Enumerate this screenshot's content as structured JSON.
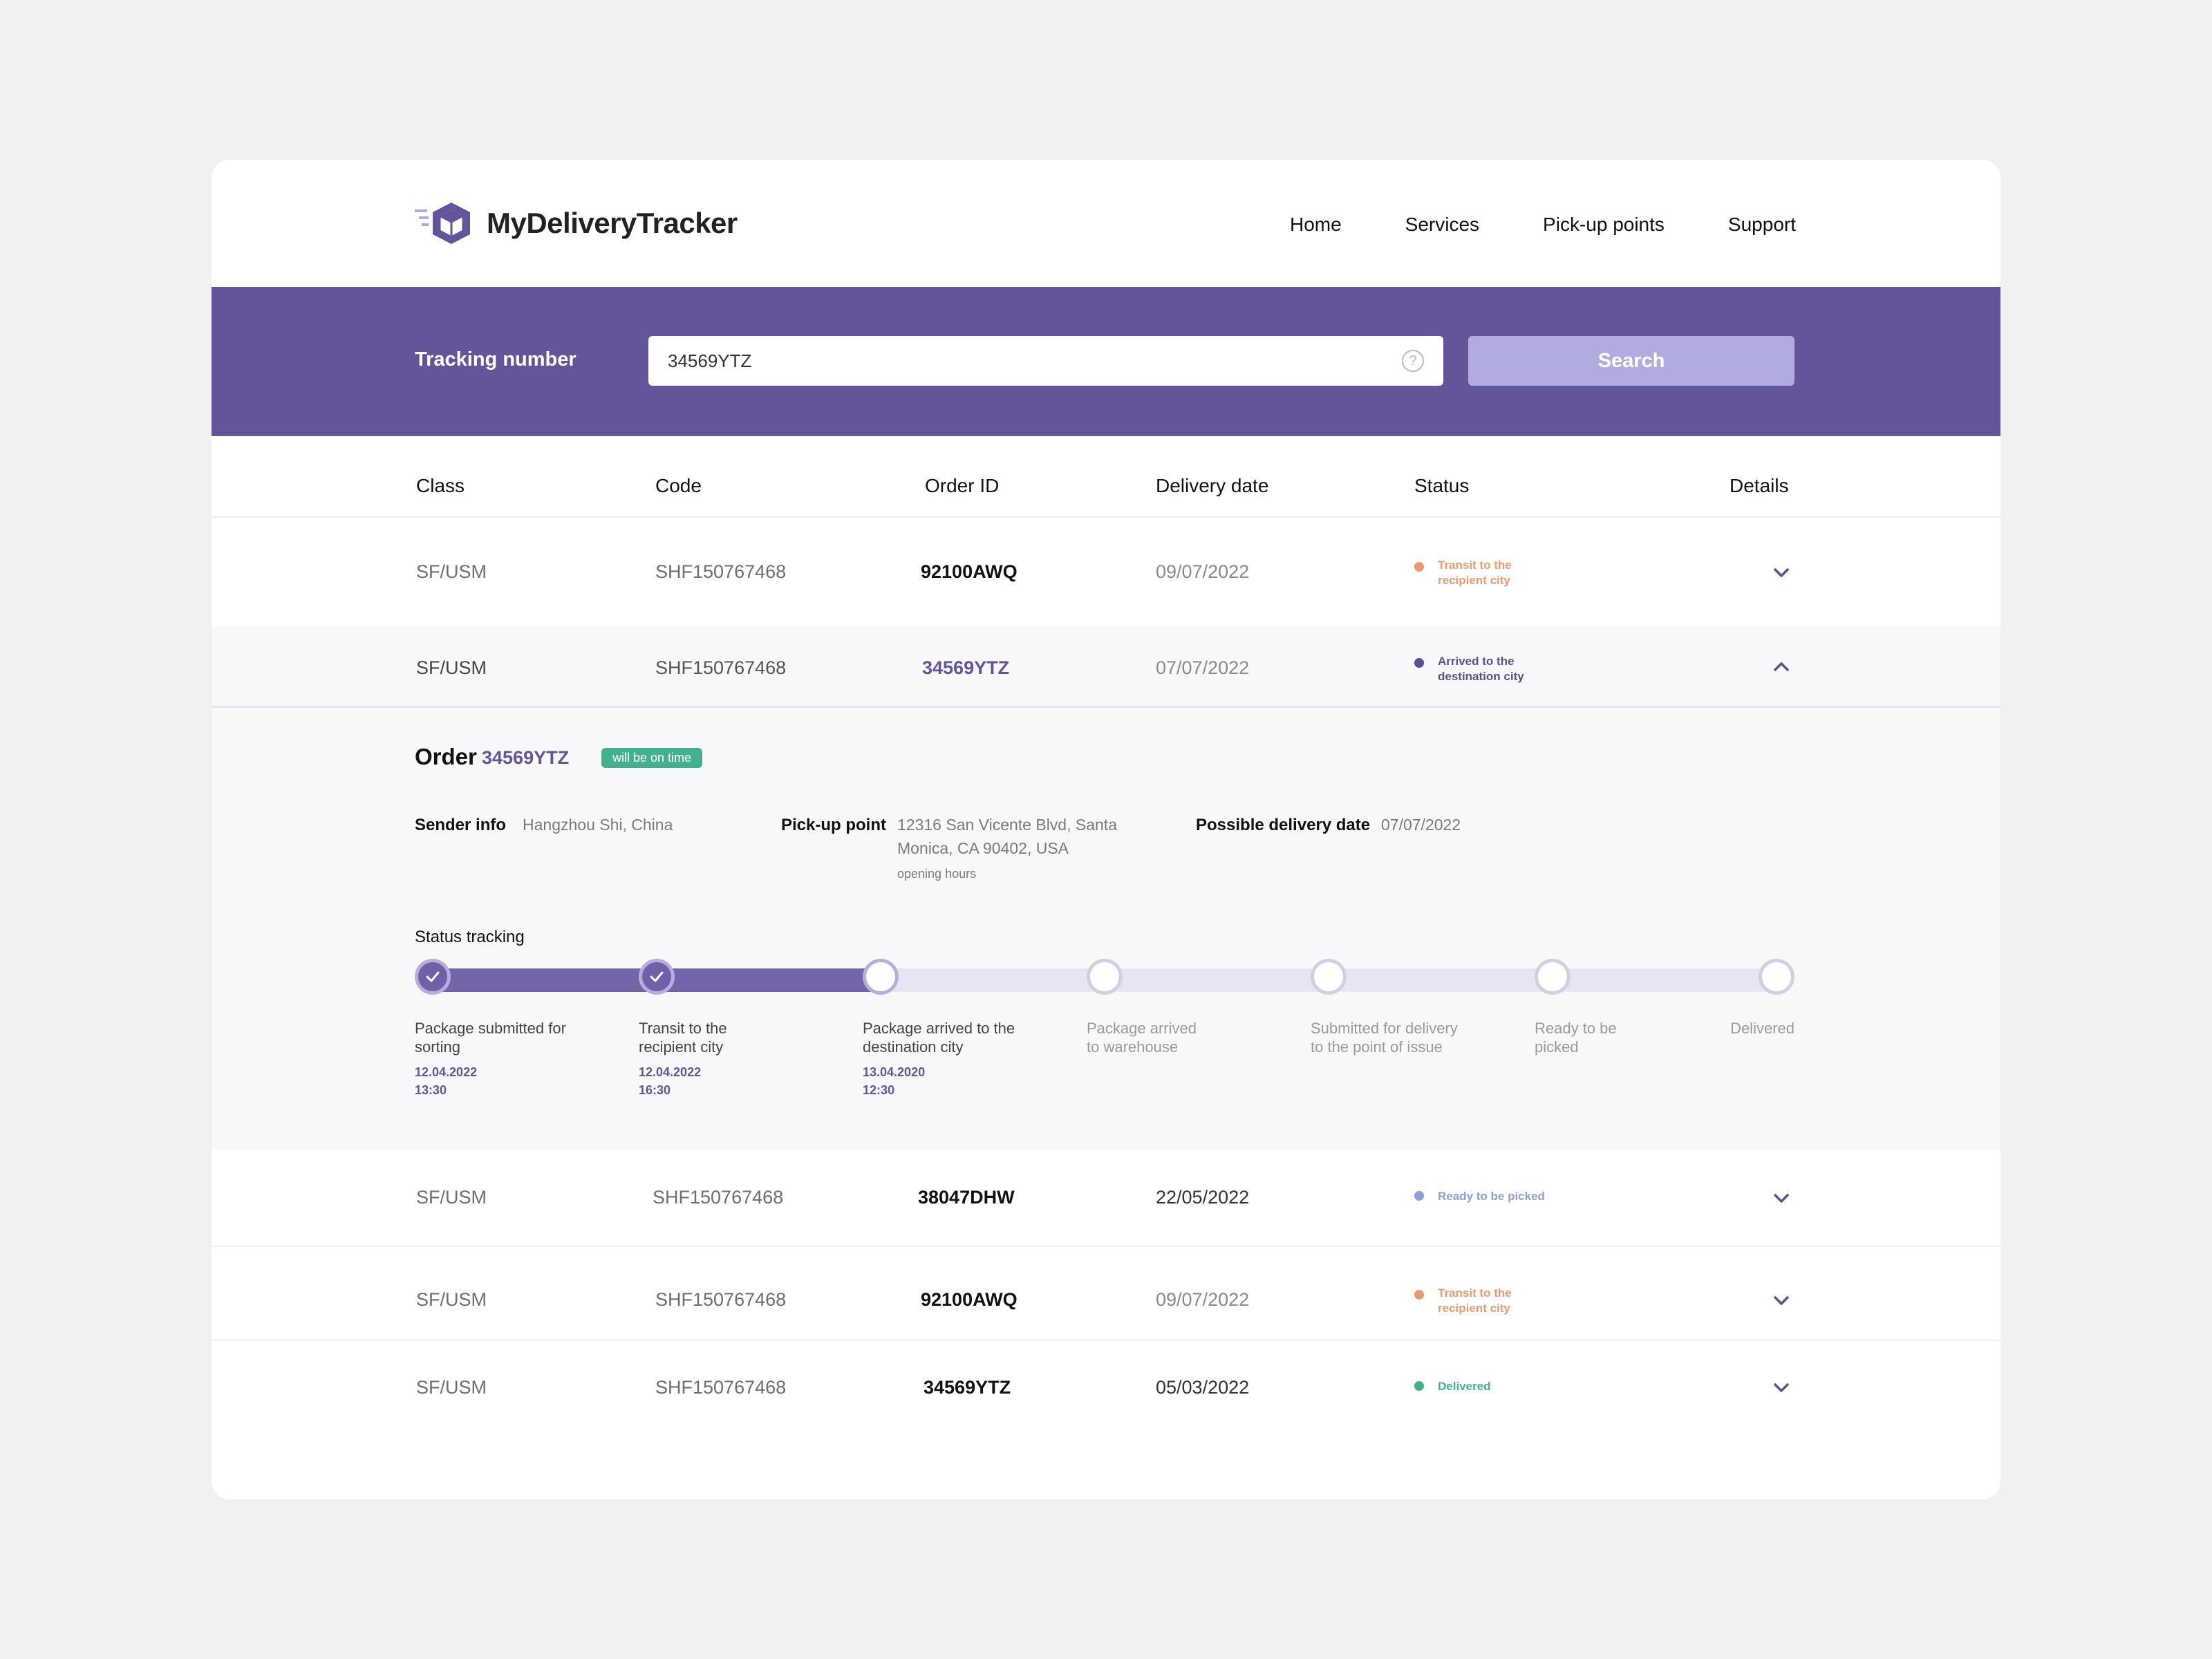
{
  "app": {
    "name": "MyDeliveryTracker",
    "nav": [
      "Home",
      "Services",
      "Pick-up points",
      "Support"
    ]
  },
  "search": {
    "label": "Tracking number",
    "value": "34569YTZ",
    "button": "Search"
  },
  "table": {
    "headers": [
      "Class",
      "Code",
      "Order ID",
      "Delivery date",
      "Status",
      "Details"
    ],
    "rows": [
      {
        "class": "SF/USM",
        "code": "SHF150767468",
        "order_id": "92100AWQ",
        "date": "09/07/2022",
        "status": "Transit to the recipient city",
        "status_color": "#e99a74",
        "expanded": false
      },
      {
        "class": "SF/USM",
        "code": "SHF150767468",
        "order_id": "34569YTZ",
        "date": "07/07/2022",
        "status": "Arrived to the destination city",
        "status_color": "#5d4e94",
        "expanded": true
      },
      {
        "class": "SF/USM",
        "code": "SHF150767468",
        "order_id": "38047DHW",
        "date": "22/05/2022",
        "status": "Ready to be picked",
        "status_color": "#8c9fd8",
        "expanded": false
      },
      {
        "class": "SF/USM",
        "code": "SHF150767468",
        "order_id": "92100AWQ",
        "date": "09/07/2022",
        "status": "Transit to the recipient city",
        "status_color": "#e99a74",
        "expanded": false
      },
      {
        "class": "SF/USM",
        "code": "SHF150767468",
        "order_id": "34569YTZ",
        "date": "05/03/2022",
        "status": "Delivered",
        "status_color": "#43b08e",
        "expanded": false
      }
    ]
  },
  "details": {
    "title": "Order",
    "order_id": "34569YTZ",
    "badge": "will be on time",
    "sender_label": "Sender info",
    "sender_value": "Hangzhou Shi, China",
    "pickup_label": "Pick-up point",
    "pickup_line1": "12316 San Vicente Blvd, Santa",
    "pickup_line2": "Monica, CA 90402, USA",
    "opening_hours": "opening hours",
    "possible_label": "Possible delivery date",
    "possible_value": "07/07/2022",
    "tracking_label": "Status tracking",
    "steps": [
      {
        "line1": "Package submitted for",
        "line2": "sorting",
        "date": "12.04.2022",
        "time": "13:30",
        "state": "done"
      },
      {
        "line1": "Transit to the",
        "line2": "recipient city",
        "date": "12.04.2022",
        "time": "16:30",
        "state": "done"
      },
      {
        "line1": "Package arrived to the",
        "line2": "destination city",
        "date": "13.04.2020",
        "time": "12:30",
        "state": "current"
      },
      {
        "line1": "Package arrived",
        "line2": "to warehouse",
        "date": "",
        "time": "",
        "state": "pending"
      },
      {
        "line1": "Submitted for delivery",
        "line2": "to the point of issue",
        "date": "",
        "time": "",
        "state": "pending"
      },
      {
        "line1": "Ready to be",
        "line2": "picked",
        "date": "",
        "time": "",
        "state": "pending"
      },
      {
        "line1": "Delivered",
        "line2": "",
        "date": "",
        "time": "",
        "state": "pending"
      }
    ]
  },
  "icons": {
    "logo": "box-icon",
    "help": "help-circle-icon",
    "expand": "chevron-down-icon",
    "collapse": "chevron-up-icon",
    "check": "check-icon"
  },
  "colors": {
    "brand": "#64549a",
    "search_button": "#b0acdf",
    "progress_fill": "#7564a9",
    "progress_track": "#e7e5f1"
  }
}
